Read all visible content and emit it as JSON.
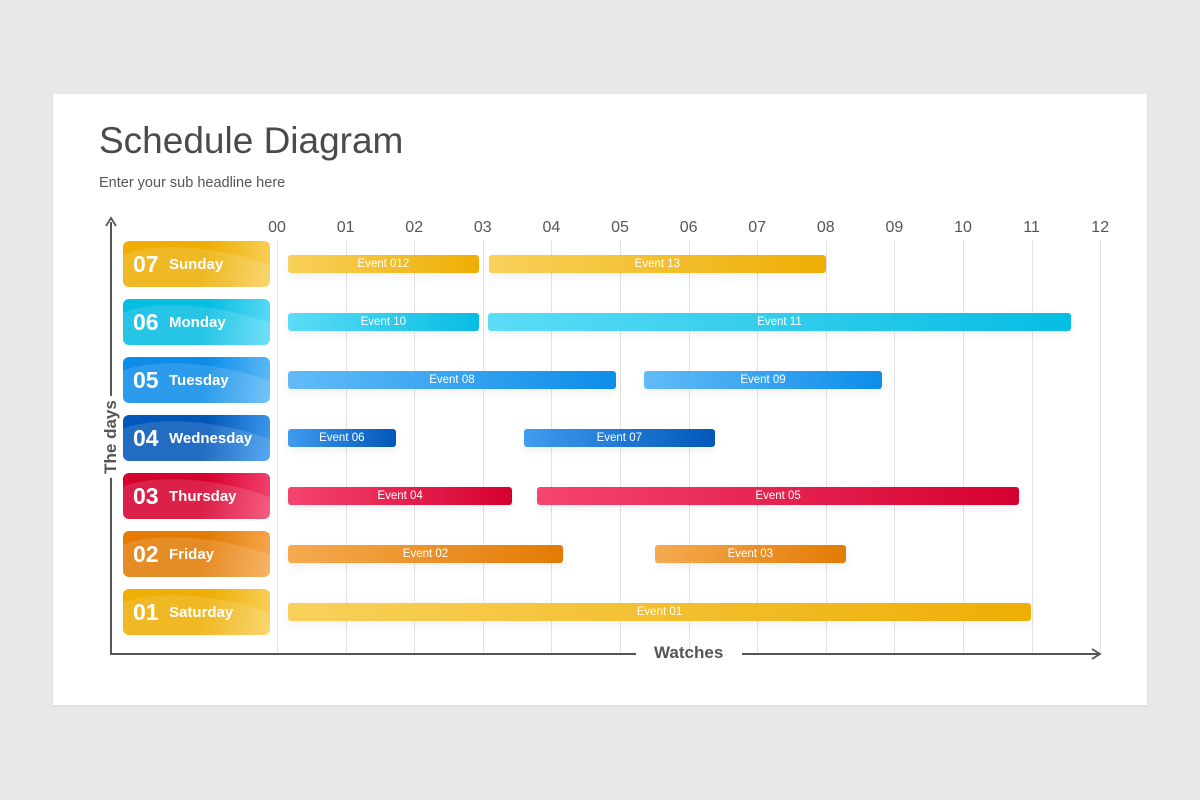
{
  "header": {
    "title": "Schedule Diagram",
    "subtitle": "Enter your sub headline here"
  },
  "axes": {
    "x_label": "Watches",
    "y_label": "The days",
    "ticks": [
      "00",
      "01",
      "02",
      "03",
      "04",
      "05",
      "06",
      "07",
      "08",
      "09",
      "10",
      "11",
      "12"
    ]
  },
  "colors": {
    "yellow": [
      "#f8d15b",
      "#eeae05"
    ],
    "cyan": [
      "#5ddcf6",
      "#06bde2"
    ],
    "blue": [
      "#62bbf7",
      "#0d8de9"
    ],
    "darkblue": [
      "#3f9cf0",
      "#0257b8"
    ],
    "red": [
      "#f5456f",
      "#d6002f"
    ],
    "orange": [
      "#f5aa50",
      "#e37b05"
    ]
  },
  "days": [
    {
      "num": "07",
      "name": "Sunday",
      "color": "yellow",
      "events": [
        {
          "label": "Event 012",
          "start": 0.16,
          "end": 2.94
        },
        {
          "label": "Event 13",
          "start": 3.09,
          "end": 8.0
        }
      ]
    },
    {
      "num": "06",
      "name": "Monday",
      "color": "cyan",
      "events": [
        {
          "label": "Event 10",
          "start": 0.16,
          "end": 2.94
        },
        {
          "label": "Event 11",
          "start": 3.08,
          "end": 11.57
        }
      ]
    },
    {
      "num": "05",
      "name": "Tuesday",
      "color": "blue",
      "events": [
        {
          "label": "Event 08",
          "start": 0.16,
          "end": 4.94
        },
        {
          "label": "Event 09",
          "start": 5.35,
          "end": 8.82
        }
      ]
    },
    {
      "num": "04",
      "name": "Wednesday",
      "color": "darkblue",
      "events": [
        {
          "label": "Event 06",
          "start": 0.16,
          "end": 1.73
        },
        {
          "label": "Event 07",
          "start": 3.6,
          "end": 6.38
        }
      ]
    },
    {
      "num": "03",
      "name": "Thursday",
      "color": "red",
      "events": [
        {
          "label": "Event 04",
          "start": 0.16,
          "end": 3.43
        },
        {
          "label": "Event 05",
          "start": 3.79,
          "end": 10.82
        }
      ]
    },
    {
      "num": "02",
      "name": "Friday",
      "color": "orange",
      "events": [
        {
          "label": "Event 02",
          "start": 0.16,
          "end": 4.17
        },
        {
          "label": "Event 03",
          "start": 5.51,
          "end": 8.29
        }
      ]
    },
    {
      "num": "01",
      "name": "Saturday",
      "color": "yellow",
      "events": [
        {
          "label": "Event 01",
          "start": 0.16,
          "end": 10.99
        }
      ]
    }
  ]
}
